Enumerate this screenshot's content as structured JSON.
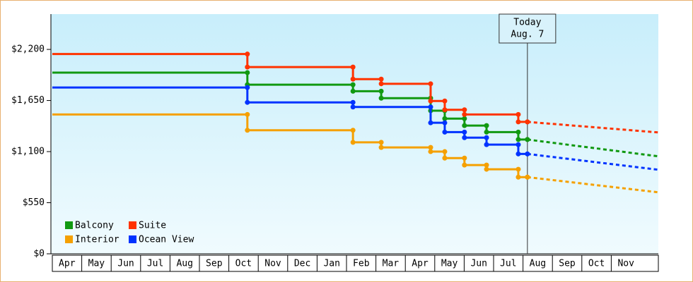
{
  "chart_data": {
    "type": "step",
    "xlim": [
      0,
      20.65
    ],
    "ylim": [
      0,
      2580
    ],
    "xticks": [
      {
        "value": 0,
        "label": "Apr"
      },
      {
        "value": 1,
        "label": "May"
      },
      {
        "value": 2,
        "label": "Jun"
      },
      {
        "value": 3,
        "label": "Jul"
      },
      {
        "value": 4,
        "label": "Aug"
      },
      {
        "value": 5,
        "label": "Sep"
      },
      {
        "value": 6,
        "label": "Oct"
      },
      {
        "value": 7,
        "label": "Nov"
      },
      {
        "value": 8,
        "label": "Dec"
      },
      {
        "value": 9,
        "label": "Jan"
      },
      {
        "value": 10,
        "label": "Feb"
      },
      {
        "value": 11,
        "label": "Mar"
      },
      {
        "value": 12,
        "label": "Apr"
      },
      {
        "value": 13,
        "label": "May"
      },
      {
        "value": 14,
        "label": "Jun"
      },
      {
        "value": 15,
        "label": "Jul"
      },
      {
        "value": 16,
        "label": "Aug"
      },
      {
        "value": 17,
        "label": "Sep"
      },
      {
        "value": 18,
        "label": "Oct"
      },
      {
        "value": 19,
        "label": "Nov"
      }
    ],
    "yticks": [
      {
        "value": 0,
        "label": "$0"
      },
      {
        "value": 550,
        "label": "$550"
      },
      {
        "value": 1100,
        "label": "$1,100"
      },
      {
        "value": 1650,
        "label": "$1,650"
      },
      {
        "value": 2200,
        "label": "$2,200"
      }
    ],
    "today": {
      "x": 16.15,
      "lines": [
        "Today",
        "Aug. 7"
      ]
    },
    "legend": "lower left",
    "series": [
      {
        "name": "Balcony",
        "color": "#119911",
        "x": [
          0,
          6.63,
          10.22,
          11.18,
          12.86,
          13.34,
          14.01,
          14.76,
          15.84,
          16.15
        ],
        "values": [
          1950,
          1820,
          1750,
          1675,
          1540,
          1455,
          1380,
          1310,
          1230,
          1230
        ],
        "forecast": {
          "x": [
            16.15,
            20.65
          ],
          "values": [
            1230,
            1047
          ]
        }
      },
      {
        "name": "Suite",
        "color": "#ff3300",
        "x": [
          0,
          6.63,
          10.22,
          11.18,
          12.86,
          13.34,
          14.01,
          15.84,
          16.15
        ],
        "values": [
          2150,
          2010,
          1880,
          1830,
          1645,
          1550,
          1500,
          1420,
          1420
        ],
        "forecast": {
          "x": [
            16.15,
            20.65
          ],
          "values": [
            1420,
            1305
          ]
        }
      },
      {
        "name": "Interior",
        "color": "#f5a000",
        "x": [
          0,
          6.63,
          10.22,
          11.18,
          12.86,
          13.34,
          14.01,
          14.76,
          15.84,
          16.15
        ],
        "values": [
          1500,
          1330,
          1200,
          1145,
          1100,
          1030,
          955,
          910,
          825,
          825
        ],
        "forecast": {
          "x": [
            16.15,
            20.65
          ],
          "values": [
            825,
            660
          ]
        }
      },
      {
        "name": "Ocean View",
        "color": "#0033ff",
        "x": [
          0,
          6.63,
          10.22,
          12.86,
          13.34,
          14.01,
          14.76,
          15.84,
          16.15
        ],
        "values": [
          1790,
          1630,
          1580,
          1410,
          1310,
          1250,
          1175,
          1075,
          1075
        ],
        "forecast": {
          "x": [
            16.15,
            20.65
          ],
          "values": [
            1075,
            903
          ]
        }
      }
    ]
  }
}
